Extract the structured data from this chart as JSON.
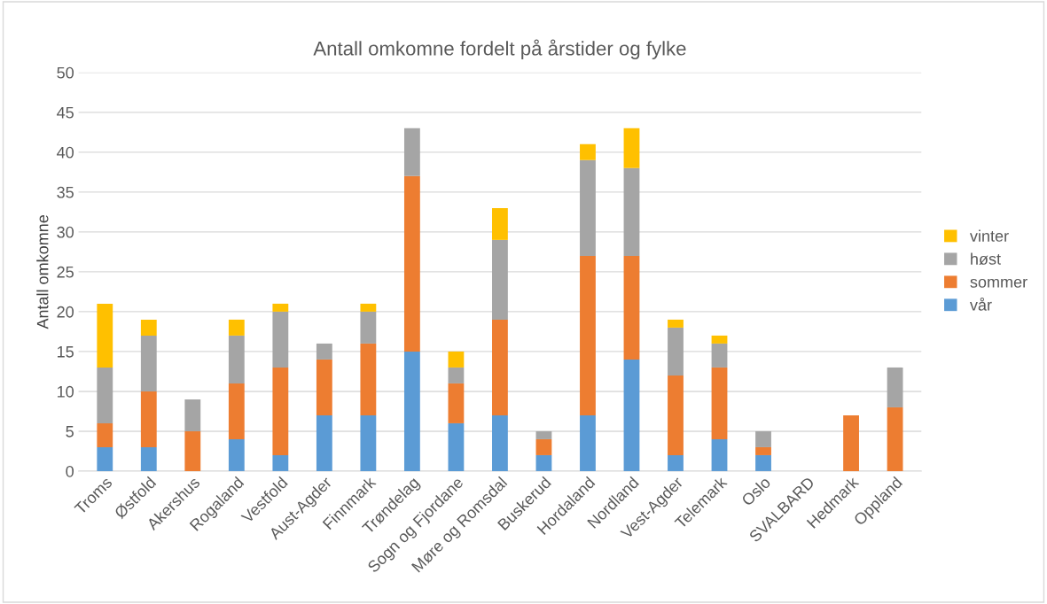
{
  "chart_data": {
    "type": "bar",
    "stacked": true,
    "title": "Antall omkomne fordelt på årstider og fylke",
    "ylabel": "Antall omkomne",
    "categories": [
      "Troms",
      "Østfold",
      "Akershus",
      "Rogaland",
      "Vestfold",
      "Aust-Agder",
      "Finnmark",
      "Trøndelag",
      "Sogn og Fjordane",
      "Møre og Romsdal",
      "Buskerud",
      "Hordaland",
      "Nordland",
      "Vest-Agder",
      "Telemark",
      "Oslo",
      "SVALBARD",
      "Hedmark",
      "Oppland"
    ],
    "series": [
      {
        "name": "vår",
        "color": "#5b9bd5",
        "values": [
          3,
          3,
          0,
          4,
          2,
          7,
          7,
          15,
          6,
          7,
          2,
          7,
          14,
          2,
          4,
          2,
          0,
          0,
          0
        ]
      },
      {
        "name": "sommer",
        "color": "#ed7d31",
        "values": [
          3,
          7,
          5,
          7,
          11,
          7,
          9,
          22,
          5,
          12,
          2,
          20,
          13,
          10,
          9,
          1,
          0,
          7,
          8
        ]
      },
      {
        "name": "høst",
        "color": "#a5a5a5",
        "values": [
          7,
          7,
          4,
          6,
          7,
          2,
          4,
          6,
          2,
          10,
          1,
          12,
          11,
          6,
          3,
          2,
          0,
          0,
          5
        ]
      },
      {
        "name": "vinter",
        "color": "#ffc000",
        "values": [
          8,
          2,
          0,
          2,
          1,
          0,
          1,
          0,
          2,
          4,
          0,
          2,
          5,
          1,
          1,
          0,
          0,
          0,
          0
        ]
      }
    ],
    "ylim": [
      0,
      50
    ],
    "yticks": [
      0,
      5,
      10,
      15,
      20,
      25,
      30,
      35,
      40,
      45,
      50
    ],
    "grid": "y",
    "legend": "right"
  }
}
